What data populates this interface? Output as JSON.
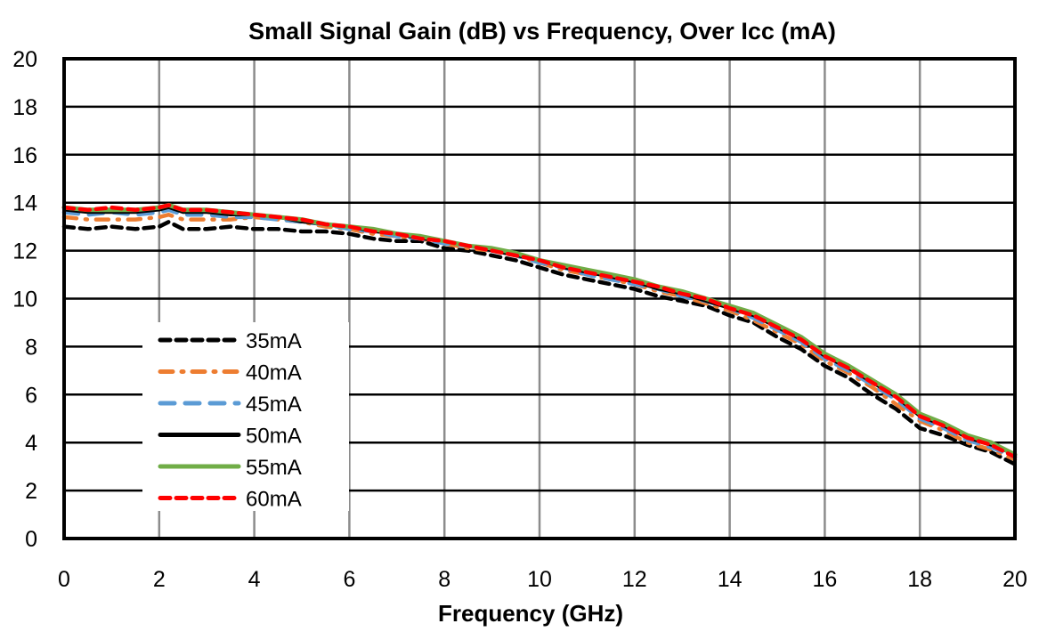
{
  "chart_data": {
    "type": "line",
    "title": "Small Signal Gain (dB) vs Frequency, Over Icc (mA)",
    "xlabel": "Frequency (GHz)",
    "ylabel": "",
    "xlim": [
      0,
      20
    ],
    "ylim": [
      0,
      20
    ],
    "xticks": [
      "0",
      "2",
      "4",
      "6",
      "8",
      "10",
      "12",
      "14",
      "16",
      "18",
      "20"
    ],
    "yticks": [
      "0",
      "2",
      "4",
      "6",
      "8",
      "10",
      "12",
      "14",
      "16",
      "18",
      "20"
    ],
    "grid": true,
    "legend_position": "lower-left",
    "x": [
      0,
      0.5,
      1,
      1.5,
      2,
      2.2,
      2.5,
      3,
      3.5,
      4,
      4.5,
      5,
      5.5,
      6,
      6.5,
      7,
      7.5,
      8,
      8.5,
      9,
      9.5,
      10,
      10.5,
      11,
      11.5,
      12,
      12.5,
      13,
      13.5,
      14,
      14.5,
      15,
      15.5,
      16,
      16.5,
      17,
      17.5,
      18,
      18.5,
      19,
      19.5,
      20
    ],
    "series": [
      {
        "name": "35mA",
        "color": "#000000",
        "dash": "dash",
        "values": [
          13.0,
          12.9,
          13.0,
          12.9,
          13.0,
          13.2,
          12.9,
          12.9,
          13.0,
          12.9,
          12.9,
          12.8,
          12.8,
          12.7,
          12.5,
          12.4,
          12.4,
          12.1,
          12.0,
          11.8,
          11.6,
          11.3,
          11.0,
          10.8,
          10.6,
          10.4,
          10.1,
          9.9,
          9.7,
          9.3,
          9.0,
          8.4,
          7.9,
          7.2,
          6.7,
          6.0,
          5.4,
          4.6,
          4.3,
          3.9,
          3.6,
          3.1
        ]
      },
      {
        "name": "40mA",
        "color": "#ED7D31",
        "dash": "dashdot",
        "values": [
          13.4,
          13.3,
          13.3,
          13.3,
          13.4,
          13.5,
          13.3,
          13.3,
          13.3,
          13.4,
          13.3,
          13.2,
          13.0,
          12.9,
          12.7,
          12.6,
          12.5,
          12.3,
          12.1,
          12.0,
          11.8,
          11.5,
          11.2,
          11.0,
          10.8,
          10.6,
          10.3,
          10.1,
          9.8,
          9.5,
          9.1,
          8.6,
          8.1,
          7.4,
          6.9,
          6.3,
          5.6,
          4.9,
          4.5,
          4.0,
          3.7,
          3.3
        ]
      },
      {
        "name": "45mA",
        "color": "#5B9BD5",
        "dash": "longdash",
        "values": [
          13.6,
          13.5,
          13.6,
          13.5,
          13.6,
          13.7,
          13.5,
          13.5,
          13.4,
          13.4,
          13.3,
          13.2,
          13.1,
          12.9,
          12.8,
          12.6,
          12.5,
          12.3,
          12.2,
          12.0,
          11.8,
          11.5,
          11.3,
          11.0,
          10.8,
          10.6,
          10.4,
          10.1,
          9.9,
          9.6,
          9.2,
          8.7,
          8.2,
          7.5,
          7.0,
          6.4,
          5.8,
          5.0,
          4.6,
          4.1,
          3.8,
          3.4
        ]
      },
      {
        "name": "50mA",
        "color": "#000000",
        "dash": "solid",
        "values": [
          13.7,
          13.6,
          13.6,
          13.6,
          13.7,
          13.8,
          13.6,
          13.6,
          13.5,
          13.5,
          13.4,
          13.2,
          13.1,
          13.0,
          12.8,
          12.7,
          12.5,
          12.4,
          12.2,
          12.0,
          11.8,
          11.6,
          11.3,
          11.1,
          10.9,
          10.7,
          10.4,
          10.2,
          9.9,
          9.6,
          9.3,
          8.8,
          8.3,
          7.6,
          7.1,
          6.5,
          5.9,
          5.1,
          4.7,
          4.2,
          3.9,
          3.5
        ]
      },
      {
        "name": "55mA",
        "color": "#70AD47",
        "dash": "solid",
        "values": [
          13.8,
          13.7,
          13.7,
          13.7,
          13.8,
          13.9,
          13.7,
          13.7,
          13.6,
          13.5,
          13.4,
          13.3,
          13.1,
          13.0,
          12.9,
          12.7,
          12.6,
          12.4,
          12.2,
          12.1,
          11.9,
          11.6,
          11.4,
          11.2,
          11.0,
          10.8,
          10.5,
          10.3,
          10.0,
          9.7,
          9.4,
          8.9,
          8.4,
          7.7,
          7.2,
          6.6,
          6.0,
          5.2,
          4.8,
          4.3,
          4.0,
          3.5
        ]
      },
      {
        "name": "60mA",
        "color": "#FF0000",
        "dash": "dash",
        "values": [
          13.8,
          13.7,
          13.8,
          13.7,
          13.8,
          13.9,
          13.7,
          13.7,
          13.6,
          13.5,
          13.4,
          13.3,
          13.1,
          13.0,
          12.8,
          12.7,
          12.5,
          12.4,
          12.2,
          12.0,
          11.8,
          11.6,
          11.3,
          11.1,
          10.9,
          10.7,
          10.5,
          10.2,
          10.0,
          9.6,
          9.3,
          8.8,
          8.3,
          7.6,
          7.1,
          6.5,
          5.9,
          5.1,
          4.7,
          4.2,
          3.9,
          3.4
        ]
      }
    ]
  }
}
